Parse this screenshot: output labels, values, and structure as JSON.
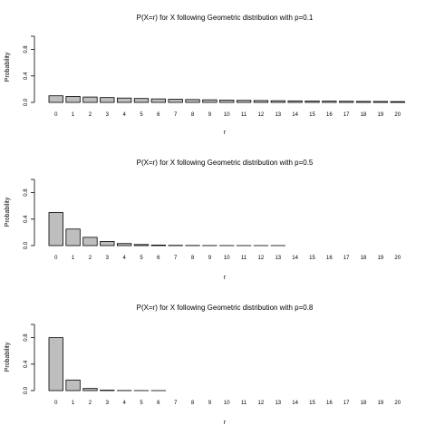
{
  "colors": {
    "bar_fill": "#bebebe",
    "bar_stroke": "#000000",
    "axis": "#000000",
    "background": "#ffffff"
  },
  "chart_data": [
    {
      "type": "bar",
      "title": "P(X=r) for X following Geometric distribution with p=0.1",
      "xlabel": "r",
      "ylabel": "Probability",
      "ylim": [
        0,
        1
      ],
      "yticks": [
        "0.0",
        "0.4",
        "0.8"
      ],
      "grid": false,
      "legend": "none",
      "categories": [
        "0",
        "1",
        "2",
        "3",
        "4",
        "5",
        "6",
        "7",
        "8",
        "9",
        "10",
        "11",
        "12",
        "13",
        "14",
        "15",
        "16",
        "17",
        "18",
        "19",
        "20"
      ],
      "values": [
        0.1,
        0.09,
        0.081,
        0.073,
        0.066,
        0.059,
        0.053,
        0.048,
        0.043,
        0.039,
        0.035,
        0.031,
        0.028,
        0.025,
        0.023,
        0.021,
        0.019,
        0.017,
        0.015,
        0.014,
        0.012
      ]
    },
    {
      "type": "bar",
      "title": "P(X=r) for X following Geometric distribution with p=0.5",
      "xlabel": "r",
      "ylabel": "Probability",
      "ylim": [
        0,
        1
      ],
      "yticks": [
        "0.0",
        "0.4",
        "0.8"
      ],
      "grid": false,
      "legend": "none",
      "categories": [
        "0",
        "1",
        "2",
        "3",
        "4",
        "5",
        "6",
        "7",
        "8",
        "9",
        "10",
        "11",
        "12",
        "13",
        "14",
        "15",
        "16",
        "17",
        "18",
        "19",
        "20"
      ],
      "values": [
        0.5,
        0.25,
        0.125,
        0.0625,
        0.031,
        0.016,
        0.008,
        0.004,
        0.002,
        0.001,
        0.0005,
        0.0002,
        0.0001,
        0.0001,
        0,
        0,
        0,
        0,
        0,
        0,
        0
      ]
    },
    {
      "type": "bar",
      "title": "P(X=r) for X following Geometric distribution with p=0.8",
      "xlabel": "r",
      "ylabel": "Probability",
      "ylim": [
        0,
        1
      ],
      "yticks": [
        "0.0",
        "0.4",
        "0.8"
      ],
      "grid": false,
      "legend": "none",
      "categories": [
        "0",
        "1",
        "2",
        "3",
        "4",
        "5",
        "6",
        "7",
        "8",
        "9",
        "10",
        "11",
        "12",
        "13",
        "14",
        "15",
        "16",
        "17",
        "18",
        "19",
        "20"
      ],
      "values": [
        0.8,
        0.16,
        0.032,
        0.0064,
        0.0013,
        0.0003,
        0.0001,
        0,
        0,
        0,
        0,
        0,
        0,
        0,
        0,
        0,
        0,
        0,
        0,
        0,
        0
      ]
    }
  ]
}
